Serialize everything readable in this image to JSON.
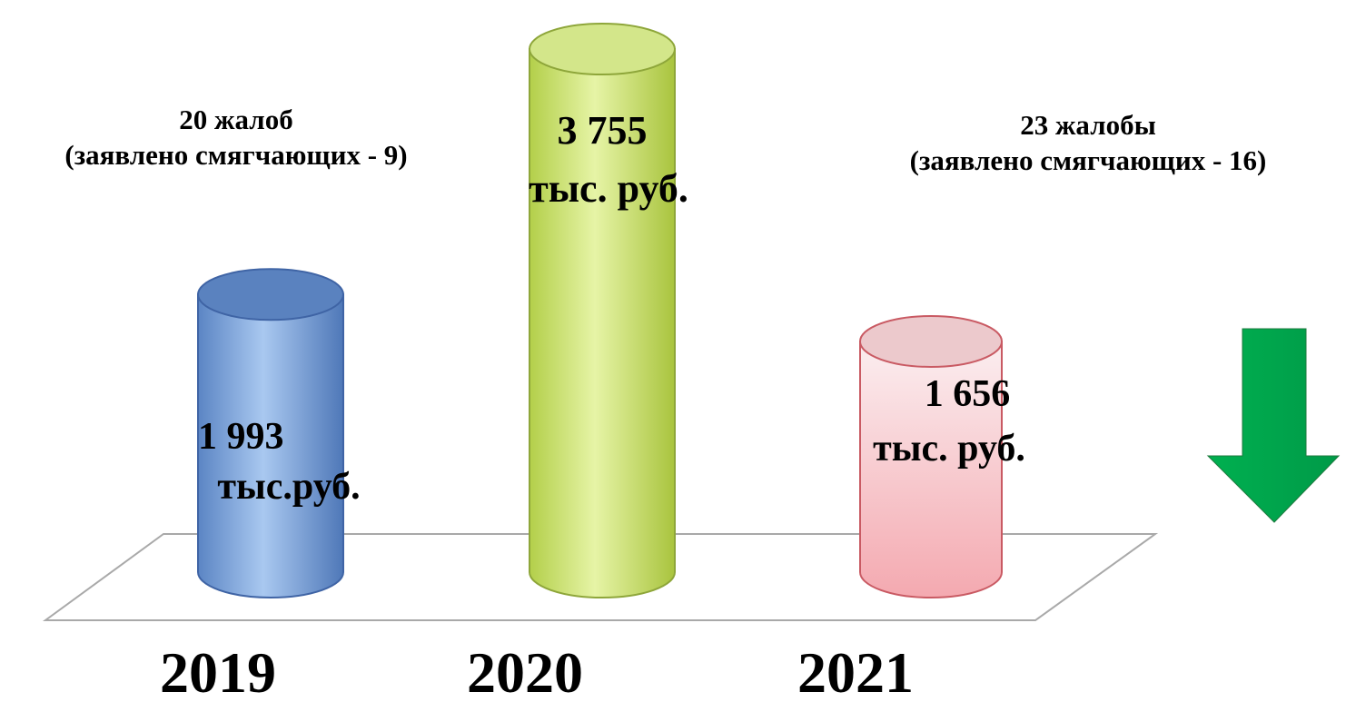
{
  "chart_data": {
    "type": "bar",
    "categories": [
      "2019",
      "2020",
      "2021"
    ],
    "values": [
      1993,
      3755,
      1656
    ],
    "value_labels": [
      [
        "1 993",
        "тыс.руб."
      ],
      [
        "3 755",
        "тыс. руб."
      ],
      [
        "1 656",
        "тыс. руб."
      ]
    ],
    "bar_colors": [
      "#7fa8dc",
      "#c8e06c",
      "#f3b8bd"
    ],
    "annotations": [
      [
        "20 жалоб",
        "(заявлено смягчающих - 9)"
      ],
      [
        "23 жалобы",
        "(заявлено смягчающих - 16)"
      ]
    ],
    "arrow": {
      "direction": "down",
      "color": "#00a650"
    },
    "title": "",
    "xlabel": "",
    "ylabel": "",
    "grid": false
  }
}
